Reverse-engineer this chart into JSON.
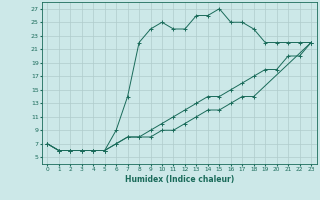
{
  "xlabel": "Humidex (Indice chaleur)",
  "xlim": [
    -0.5,
    23.5
  ],
  "ylim": [
    4,
    28
  ],
  "xticks": [
    0,
    1,
    2,
    3,
    4,
    5,
    6,
    7,
    8,
    9,
    10,
    11,
    12,
    13,
    14,
    15,
    16,
    17,
    18,
    19,
    20,
    21,
    22,
    23
  ],
  "yticks": [
    5,
    7,
    9,
    11,
    13,
    15,
    17,
    19,
    21,
    23,
    25,
    27
  ],
  "background_color": "#cce8e8",
  "grid_color": "#b0cccc",
  "line_color": "#1a6b5a",
  "line1_x": [
    0,
    1,
    2,
    3,
    4,
    5,
    6,
    7,
    8,
    9,
    10,
    11,
    12,
    13,
    14,
    15,
    16,
    17,
    18,
    23
  ],
  "line1_y": [
    7,
    6,
    6,
    6,
    6,
    6,
    7,
    8,
    8,
    8,
    9,
    9,
    10,
    11,
    12,
    12,
    13,
    14,
    14,
    22
  ],
  "line2_x": [
    0,
    1,
    2,
    3,
    4,
    5,
    6,
    7,
    8,
    9,
    10,
    11,
    12,
    13,
    14,
    15,
    16,
    17,
    18,
    19,
    20,
    21,
    22,
    23
  ],
  "line2_y": [
    7,
    6,
    6,
    6,
    6,
    6,
    7,
    8,
    8,
    9,
    10,
    11,
    12,
    13,
    14,
    14,
    15,
    16,
    17,
    18,
    18,
    20,
    20,
    22
  ],
  "line3_x": [
    0,
    1,
    2,
    3,
    4,
    5,
    6,
    7,
    8,
    9,
    10,
    11,
    12,
    13,
    14,
    15,
    16,
    17,
    18,
    19,
    20,
    21,
    22,
    23
  ],
  "line3_y": [
    7,
    6,
    6,
    6,
    6,
    6,
    9,
    14,
    22,
    24,
    25,
    24,
    24,
    26,
    26,
    27,
    25,
    25,
    24,
    22,
    22,
    22,
    22,
    22
  ]
}
